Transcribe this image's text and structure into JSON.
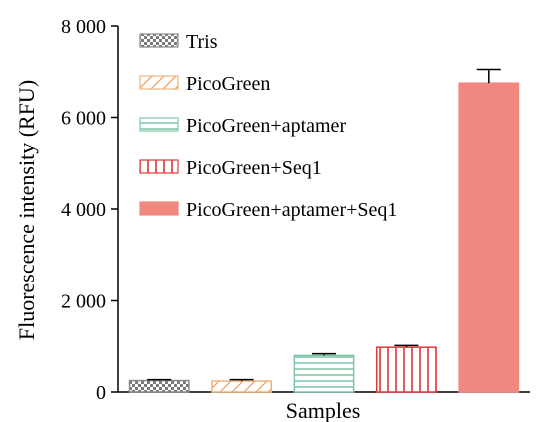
{
  "chart_data": {
    "type": "bar",
    "xlabel": "Samples",
    "ylabel": "Fluorescence intensity (RFU)",
    "ylim": [
      0,
      8000
    ],
    "yticks": [
      0,
      2000,
      4000,
      6000,
      8000
    ],
    "ytick_labels": [
      "0",
      "2 000",
      "4 000",
      "6 000",
      "8 000"
    ],
    "legend_position": "top-left",
    "series": [
      {
        "name": "Tris",
        "value": 250,
        "error": 20,
        "color": "#888888",
        "pattern": "checker"
      },
      {
        "name": "PicoGreen",
        "value": 240,
        "error": 30,
        "color": "#f0b27a",
        "pattern": "diagonal"
      },
      {
        "name": "PicoGreen+aptamer",
        "value": 800,
        "error": 40,
        "color": "#7dc9a7",
        "pattern": "horizontal"
      },
      {
        "name": "PicoGreen+Seq1",
        "value": 980,
        "error": 40,
        "color": "#e03a3a",
        "pattern": "vertical"
      },
      {
        "name": "PicoGreen+aptamer+Seq1",
        "value": 6750,
        "error": 300,
        "color": "#f08880",
        "pattern": "solid"
      }
    ]
  }
}
